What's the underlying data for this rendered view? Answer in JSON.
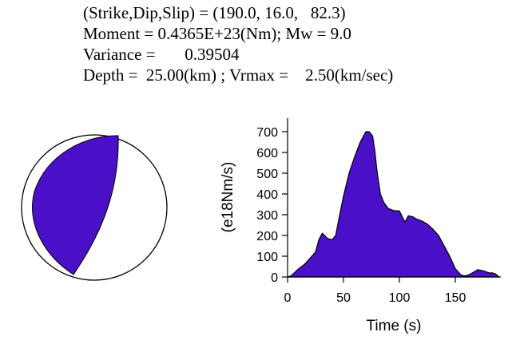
{
  "header": {
    "line1": "(Strike,Dip,Slip) = (190.0, 16.0,   82.3)",
    "line2": "Moment = 0.4365E+23(Nm); Mw = 9.0",
    "line3": "Variance =       0.39504",
    "line4": "Depth =  25.00(km) ; Vrmax =    2.50(km/sec)"
  },
  "colors": {
    "fill": "#4a10c8",
    "stroke": "#000000"
  },
  "chart_data": {
    "type": "area",
    "title": "",
    "xlabel": "Time (s)",
    "ylabel": "(e18Nm/s)",
    "xlim": [
      0,
      190
    ],
    "ylim": [
      0,
      700
    ],
    "xticks": [
      0,
      50,
      100,
      150
    ],
    "yticks": [
      0,
      100,
      200,
      300,
      400,
      500,
      600,
      700
    ],
    "grid": false,
    "x": [
      0,
      3,
      6,
      10,
      15,
      20,
      25,
      28,
      31,
      33,
      36,
      40,
      43,
      47,
      50,
      55,
      60,
      65,
      70,
      73,
      76,
      78,
      80,
      83,
      86,
      90,
      95,
      100,
      105,
      108,
      112,
      115,
      120,
      125,
      130,
      135,
      138,
      142,
      145,
      150,
      155,
      158,
      162,
      167,
      170,
      175,
      180,
      183,
      186,
      189
    ],
    "y": [
      0,
      5,
      20,
      40,
      60,
      90,
      120,
      180,
      210,
      200,
      185,
      180,
      200,
      310,
      390,
      500,
      580,
      650,
      700,
      700,
      680,
      610,
      510,
      400,
      360,
      330,
      320,
      318,
      265,
      295,
      290,
      280,
      270,
      255,
      230,
      200,
      170,
      130,
      100,
      40,
      10,
      5,
      10,
      25,
      35,
      30,
      20,
      20,
      15,
      0
    ]
  }
}
